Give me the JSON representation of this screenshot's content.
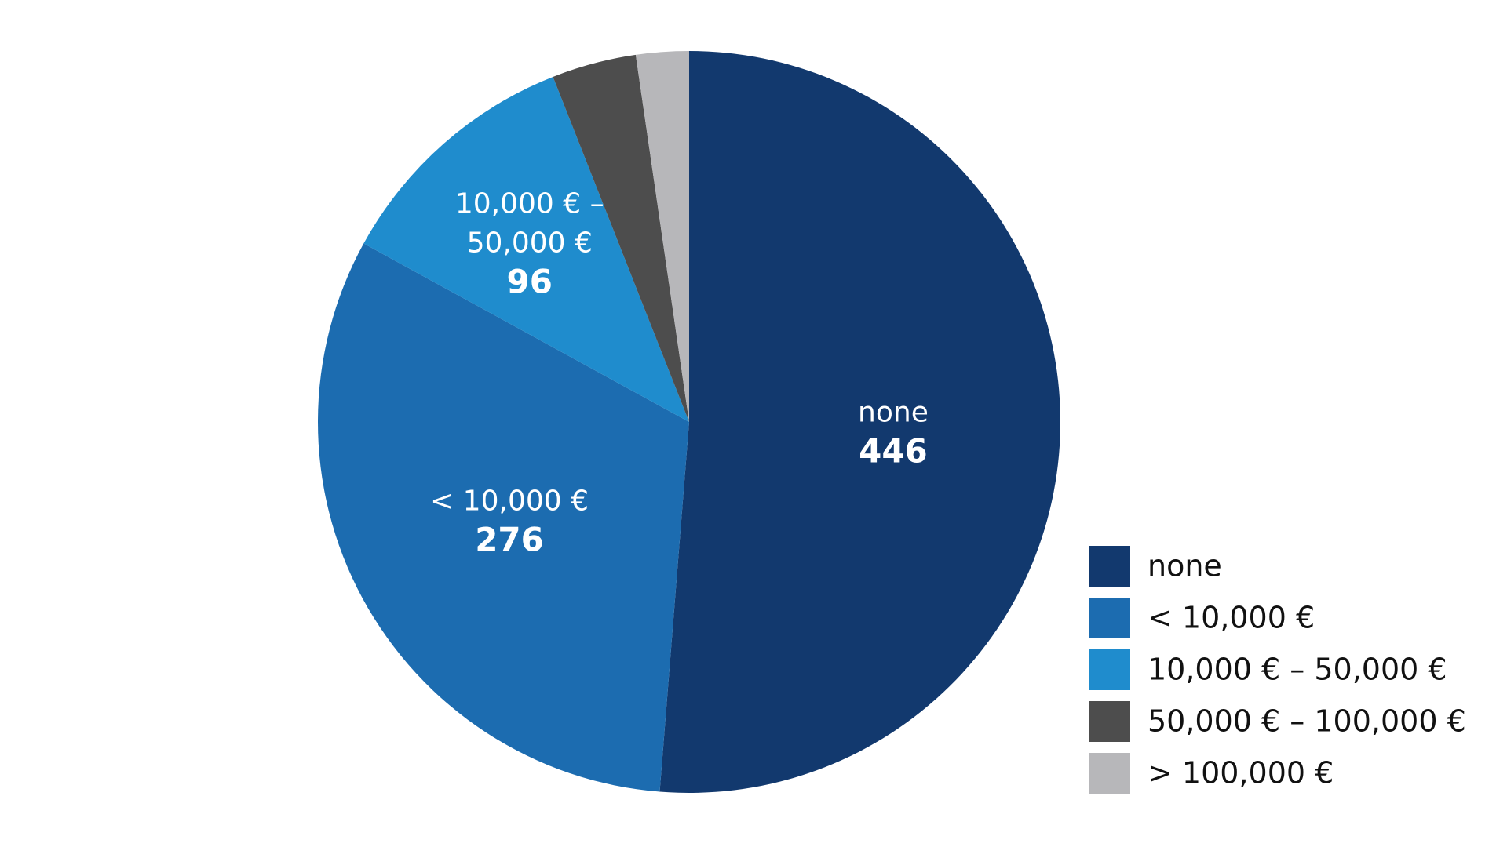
{
  "chart_data": {
    "type": "pie",
    "categories": [
      "none",
      "< 10,000 €",
      "10,000 € – 50,000 €",
      "50,000 € – 100,000 €",
      "> 100,000 €"
    ],
    "values": [
      446,
      276,
      96,
      32,
      20
    ],
    "colors": [
      "#12396e",
      "#1c6cb0",
      "#1f8ccd",
      "#4d4d4d",
      "#b7b7ba"
    ],
    "slice_labels": [
      {
        "lines": [
          "none"
        ],
        "value": "446"
      },
      {
        "lines": [
          "< 10,000 €"
        ],
        "value": "276"
      },
      {
        "lines": [
          "10,000 € –",
          "50,000 €"
        ],
        "value": "96"
      },
      null,
      null
    ],
    "legend": {
      "position": "bottom-right",
      "items": [
        "none",
        "< 10,000 €",
        "10,000 € – 50,000 €",
        "50,000 € – 100,000 €",
        "> 100,000 €"
      ]
    },
    "title": "",
    "start_angle_deg": 0,
    "direction": "clockwise"
  }
}
